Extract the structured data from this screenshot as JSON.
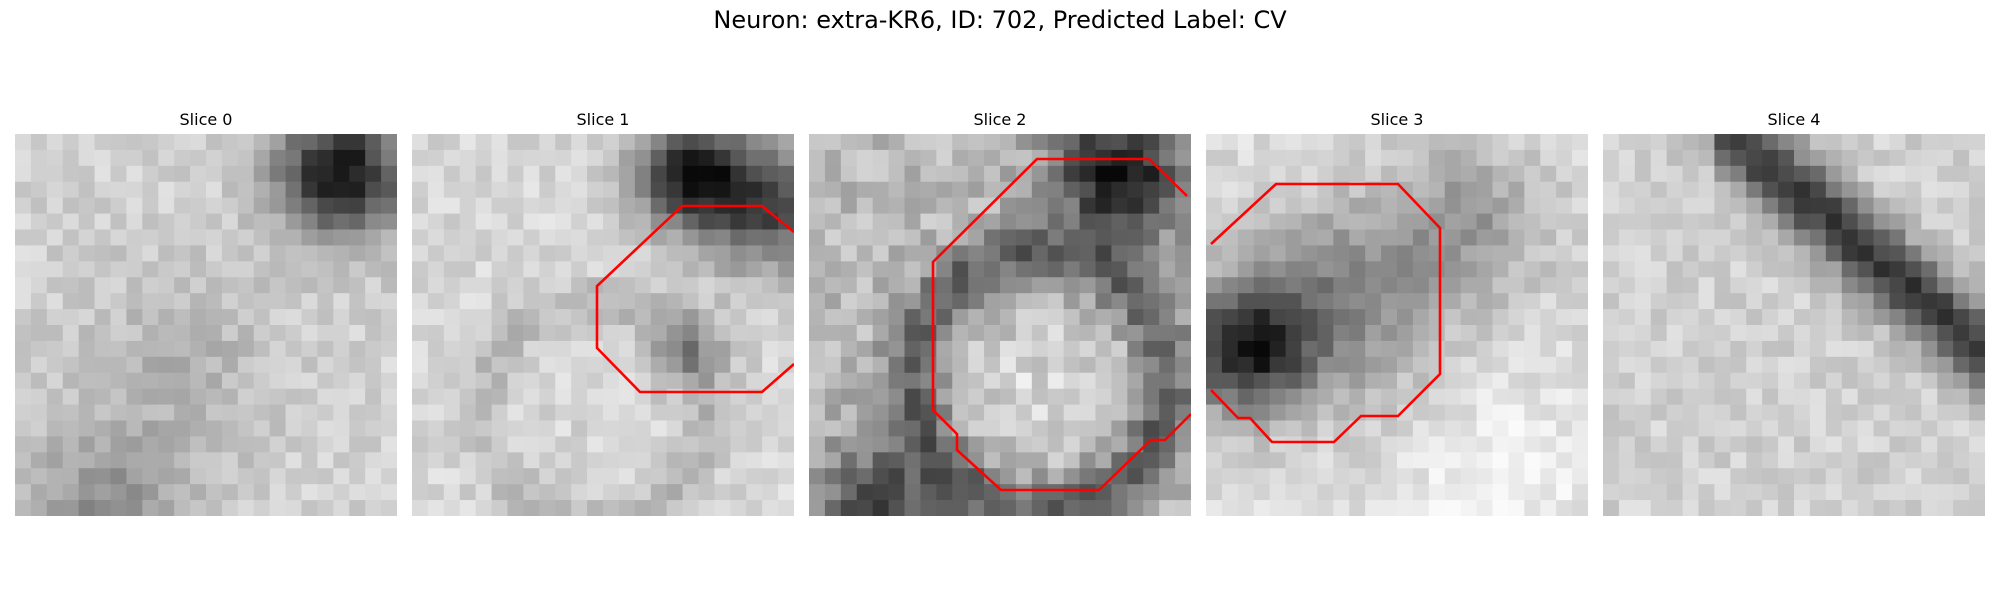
{
  "figure": {
    "title": "Neuron: extra-KR6, ID: 702, Predicted Label: CV"
  },
  "slices": [
    {
      "title": "Slice 0",
      "has_contour": false
    },
    {
      "title": "Slice 1",
      "has_contour": true
    },
    {
      "title": "Slice 2",
      "has_contour": true
    },
    {
      "title": "Slice 3",
      "has_contour": true
    },
    {
      "title": "Slice 4",
      "has_contour": false
    }
  ],
  "colors": {
    "contour": "#ff0000",
    "background": "#ffffff"
  },
  "colormap": "grayscale"
}
